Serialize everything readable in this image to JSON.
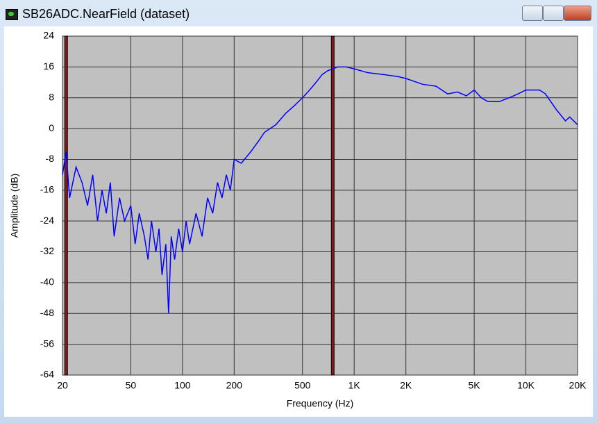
{
  "window": {
    "title": "SB26ADC.NearField (dataset)"
  },
  "chart_data": {
    "type": "line",
    "x_label": "Frequency (Hz)",
    "y_label": "Amplitude (dB)",
    "xlog": true,
    "grid": true,
    "xlim": [
      20,
      20000
    ],
    "ylim": [
      -64,
      24
    ],
    "xticks": [
      20,
      50,
      100,
      200,
      500,
      {
        "value": 1000,
        "label": "1K"
      },
      {
        "value": 2000,
        "label": "2K"
      },
      {
        "value": 5000,
        "label": "5K"
      },
      {
        "value": 10000,
        "label": "10K"
      },
      {
        "value": 20000,
        "label": "20K"
      }
    ],
    "yticks": [
      -64,
      -56,
      -48,
      -40,
      -32,
      -24,
      -16,
      -8,
      0,
      8,
      16,
      24
    ],
    "markers": [
      21,
      750
    ],
    "marker_color": "#8b1a1a",
    "x": [
      20,
      21,
      22,
      24,
      26,
      28,
      30,
      32,
      34,
      36,
      38,
      40,
      43,
      46,
      50,
      53,
      56,
      60,
      63,
      66,
      70,
      73,
      76,
      80,
      83,
      86,
      90,
      95,
      100,
      105,
      110,
      120,
      130,
      140,
      150,
      160,
      170,
      180,
      190,
      200,
      220,
      250,
      280,
      300,
      350,
      400,
      450,
      500,
      550,
      600,
      650,
      700,
      800,
      900,
      1000,
      1200,
      1500,
      1800,
      2000,
      2500,
      3000,
      3500,
      4000,
      4500,
      5000,
      5500,
      6000,
      7000,
      8000,
      9000,
      10000,
      11000,
      12000,
      13000,
      15000,
      17000,
      18000,
      20000
    ],
    "series": [
      {
        "name": "SB26ADC.NearField",
        "color": "#0000ff",
        "values": [
          -12,
          -6,
          -18,
          -10,
          -14,
          -20,
          -12,
          -24,
          -16,
          -22,
          -14,
          -28,
          -18,
          -24,
          -20,
          -30,
          -22,
          -28,
          -34,
          -24,
          -32,
          -26,
          -38,
          -30,
          -48,
          -28,
          -34,
          -26,
          -32,
          -24,
          -30,
          -22,
          -28,
          -18,
          -22,
          -14,
          -18,
          -12,
          -16,
          -8,
          -9,
          -6,
          -3,
          -1,
          1,
          4,
          6,
          8,
          10,
          12,
          14,
          15,
          16,
          16,
          15.5,
          14.5,
          14,
          13.5,
          13,
          11.5,
          11,
          9,
          9.5,
          8.5,
          10,
          8,
          7,
          7,
          8,
          9,
          10,
          10,
          10,
          9,
          5,
          2,
          3,
          1
        ]
      }
    ]
  }
}
